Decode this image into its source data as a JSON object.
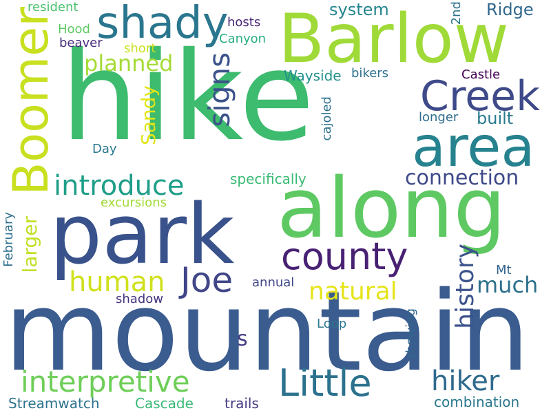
{
  "words": [
    {
      "id": "hike",
      "text": "hike",
      "color": "#3dbb6e"
    },
    {
      "id": "mountain",
      "text": "mountain",
      "color": "#3b5c8f"
    },
    {
      "id": "park",
      "text": "park",
      "color": "#3a528b"
    },
    {
      "id": "along",
      "text": "along",
      "color": "#5ec962"
    },
    {
      "id": "barlow",
      "text": "Barlow",
      "color": "#a0da39"
    },
    {
      "id": "area",
      "text": "area",
      "color": "#26828e"
    },
    {
      "id": "boomer",
      "text": "Boomer",
      "color": "#c8e020"
    },
    {
      "id": "shady",
      "text": "shady",
      "color": "#2a768e"
    },
    {
      "id": "creek",
      "text": "Creek",
      "color": "#3e4a89"
    },
    {
      "id": "county",
      "text": "county",
      "color": "#482173"
    },
    {
      "id": "little",
      "text": "Little",
      "color": "#2c728e"
    },
    {
      "id": "joe",
      "text": "Joe",
      "color": "#404688"
    },
    {
      "id": "interpretive",
      "text": "interpretive",
      "color": "#6ece58"
    },
    {
      "id": "introduce",
      "text": "introduce",
      "color": "#1f9e89"
    },
    {
      "id": "hiker",
      "text": "hiker",
      "color": "#306a8e"
    },
    {
      "id": "signs",
      "text": "signs",
      "color": "#3b528b"
    },
    {
      "id": "human",
      "text": "human",
      "color": "#d0e11c"
    },
    {
      "id": "history",
      "text": "history",
      "color": "#3b528b"
    },
    {
      "id": "natural",
      "text": "natural",
      "color": "#e5e419"
    },
    {
      "id": "connection",
      "text": "connection",
      "color": "#3e4989"
    },
    {
      "id": "planned",
      "text": "planned",
      "color": "#a5db36"
    },
    {
      "id": "much",
      "text": "much",
      "color": "#2d708e"
    },
    {
      "id": "sandy",
      "text": "Sandy",
      "color": "#e2e418"
    },
    {
      "id": "larger",
      "text": "larger",
      "color": "#c2df23"
    },
    {
      "id": "system",
      "text": "system",
      "color": "#25858e"
    },
    {
      "id": "built",
      "text": "built",
      "color": "#297b8e"
    },
    {
      "id": "ridge",
      "text": "Ridge",
      "color": "#31688e"
    },
    {
      "id": "s",
      "text": "s",
      "color": "#433e85"
    },
    {
      "id": "specifically",
      "text": "specifically",
      "color": "#3bbb75"
    },
    {
      "id": "excursions",
      "text": "excursions",
      "color": "#a2da37"
    },
    {
      "id": "wayside",
      "text": "Wayside",
      "color": "#21918c"
    },
    {
      "id": "cascade",
      "text": "Cascade",
      "color": "#38b977"
    },
    {
      "id": "streamwatch",
      "text": "Streamwatch",
      "color": "#2c738e"
    },
    {
      "id": "combination",
      "text": "combination",
      "color": "#2a788e"
    },
    {
      "id": "trails",
      "text": "trails",
      "color": "#443a83"
    },
    {
      "id": "shadow",
      "text": "shadow",
      "color": "#46337e"
    },
    {
      "id": "annual",
      "text": "annual",
      "color": "#3f4788"
    },
    {
      "id": "loop",
      "text": "Loop",
      "color": "#2a788e"
    },
    {
      "id": "showing",
      "text": "showing",
      "color": "#31668e"
    },
    {
      "id": "mt",
      "text": "Mt",
      "color": "#33638d"
    },
    {
      "id": "cajoled",
      "text": "cajoled",
      "color": "#2c718e"
    },
    {
      "id": "day",
      "text": "Day",
      "color": "#2a778e"
    },
    {
      "id": "longer",
      "text": "longer",
      "color": "#2f6c8e"
    },
    {
      "id": "castle",
      "text": "Castle",
      "color": "#440154"
    },
    {
      "id": "bikers",
      "text": "bikers",
      "color": "#2d718e"
    },
    {
      "id": "canyon",
      "text": "Canyon",
      "color": "#29af7f"
    },
    {
      "id": "hosts",
      "text": "hosts",
      "color": "#482576"
    },
    {
      "id": "short",
      "text": "short",
      "color": "#cae11f"
    },
    {
      "id": "beaver",
      "text": "beaver",
      "color": "#472d7b"
    },
    {
      "id": "hood",
      "text": "Hood",
      "color": "#5ec962"
    },
    {
      "id": "resident",
      "text": "resident",
      "color": "#4ac16d"
    },
    {
      "id": "2nd",
      "text": "2nd",
      "color": "#2c738e"
    },
    {
      "id": "february",
      "text": "February",
      "color": "#2e6f8e"
    }
  ]
}
